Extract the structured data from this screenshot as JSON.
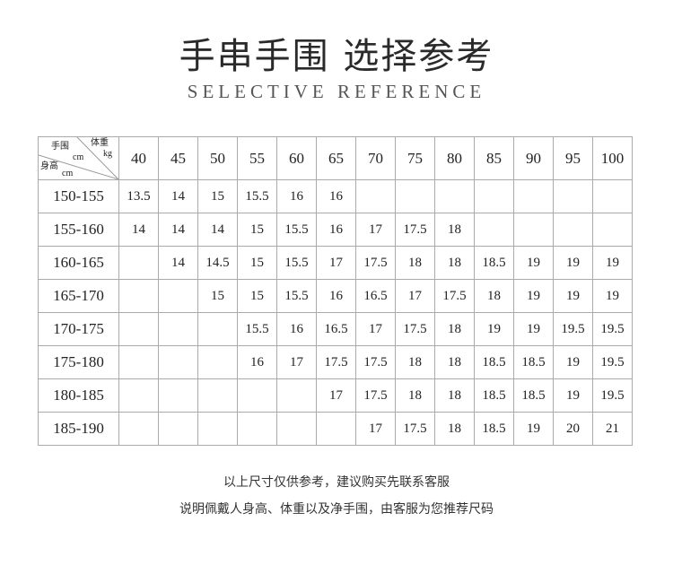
{
  "title": "手串手围 选择参考",
  "subtitle": "SELECTIVE REFERENCE",
  "table": {
    "corner": {
      "wrist": "手围",
      "wrist_unit": "cm",
      "weight": "体重",
      "weight_unit": "kg",
      "height": "身高",
      "height_unit": "cm"
    },
    "weights": [
      "40",
      "45",
      "50",
      "55",
      "60",
      "65",
      "70",
      "75",
      "80",
      "85",
      "90",
      "95",
      "100"
    ],
    "rows": [
      {
        "height": "150-155",
        "values": [
          "13.5",
          "14",
          "15",
          "15.5",
          "16",
          "16",
          "",
          "",
          "",
          "",
          "",
          "",
          ""
        ]
      },
      {
        "height": "155-160",
        "values": [
          "14",
          "14",
          "14",
          "15",
          "15.5",
          "16",
          "17",
          "17.5",
          "18",
          "",
          "",
          "",
          ""
        ]
      },
      {
        "height": "160-165",
        "values": [
          "",
          "14",
          "14.5",
          "15",
          "15.5",
          "17",
          "17.5",
          "18",
          "18",
          "18.5",
          "19",
          "19",
          "19"
        ]
      },
      {
        "height": "165-170",
        "values": [
          "",
          "",
          "15",
          "15",
          "15.5",
          "16",
          "16.5",
          "17",
          "17.5",
          "18",
          "19",
          "19",
          "19"
        ]
      },
      {
        "height": "170-175",
        "values": [
          "",
          "",
          "",
          "15.5",
          "16",
          "16.5",
          "17",
          "17.5",
          "18",
          "19",
          "19",
          "19.5",
          "19.5"
        ]
      },
      {
        "height": "175-180",
        "values": [
          "",
          "",
          "",
          "16",
          "17",
          "17.5",
          "17.5",
          "18",
          "18",
          "18.5",
          "18.5",
          "19",
          "19.5"
        ]
      },
      {
        "height": "180-185",
        "values": [
          "",
          "",
          "",
          "",
          "",
          "17",
          "17.5",
          "18",
          "18",
          "18.5",
          "18.5",
          "19",
          "19.5"
        ]
      },
      {
        "height": "185-190",
        "values": [
          "",
          "",
          "",
          "",
          "",
          "",
          "17",
          "17.5",
          "18",
          "18.5",
          "19",
          "20",
          "21"
        ]
      }
    ]
  },
  "notes": [
    "以上尺寸仅供参考，建议购买先联系客服",
    "说明佩戴人身高、体重以及净手围，由客服为您推荐尺码"
  ]
}
